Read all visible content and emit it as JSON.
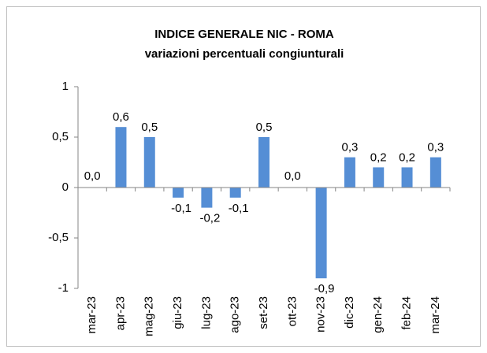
{
  "chart_data": {
    "type": "bar",
    "title": "INDICE GENERALE NIC - ROMA",
    "subtitle": "variazioni percentuali congiunturali",
    "categories": [
      "mar-23",
      "apr-23",
      "mag-23",
      "giu-23",
      "lug-23",
      "ago-23",
      "set-23",
      "ott-23",
      "nov-23",
      "dic-23",
      "gen-24",
      "feb-24",
      "mar-24"
    ],
    "values": [
      0.0,
      0.6,
      0.5,
      -0.1,
      -0.2,
      -0.1,
      0.5,
      0.0,
      -0.9,
      0.3,
      0.2,
      0.2,
      0.3
    ],
    "value_labels": [
      "0,0",
      "0,6",
      "0,5",
      "-0,1",
      "-0,2",
      "-0,1",
      "0,5",
      "0,0",
      "-0,9",
      "0,3",
      "0,2",
      "0,2",
      "0,3"
    ],
    "color": "#558ed5",
    "ylim": [
      -1,
      1
    ],
    "yticks": [
      -1,
      {
        "value": -0.5,
        "label": "-0,5"
      },
      0,
      {
        "value": 0.5,
        "label": "0,5"
      },
      1
    ],
    "grid": false
  }
}
